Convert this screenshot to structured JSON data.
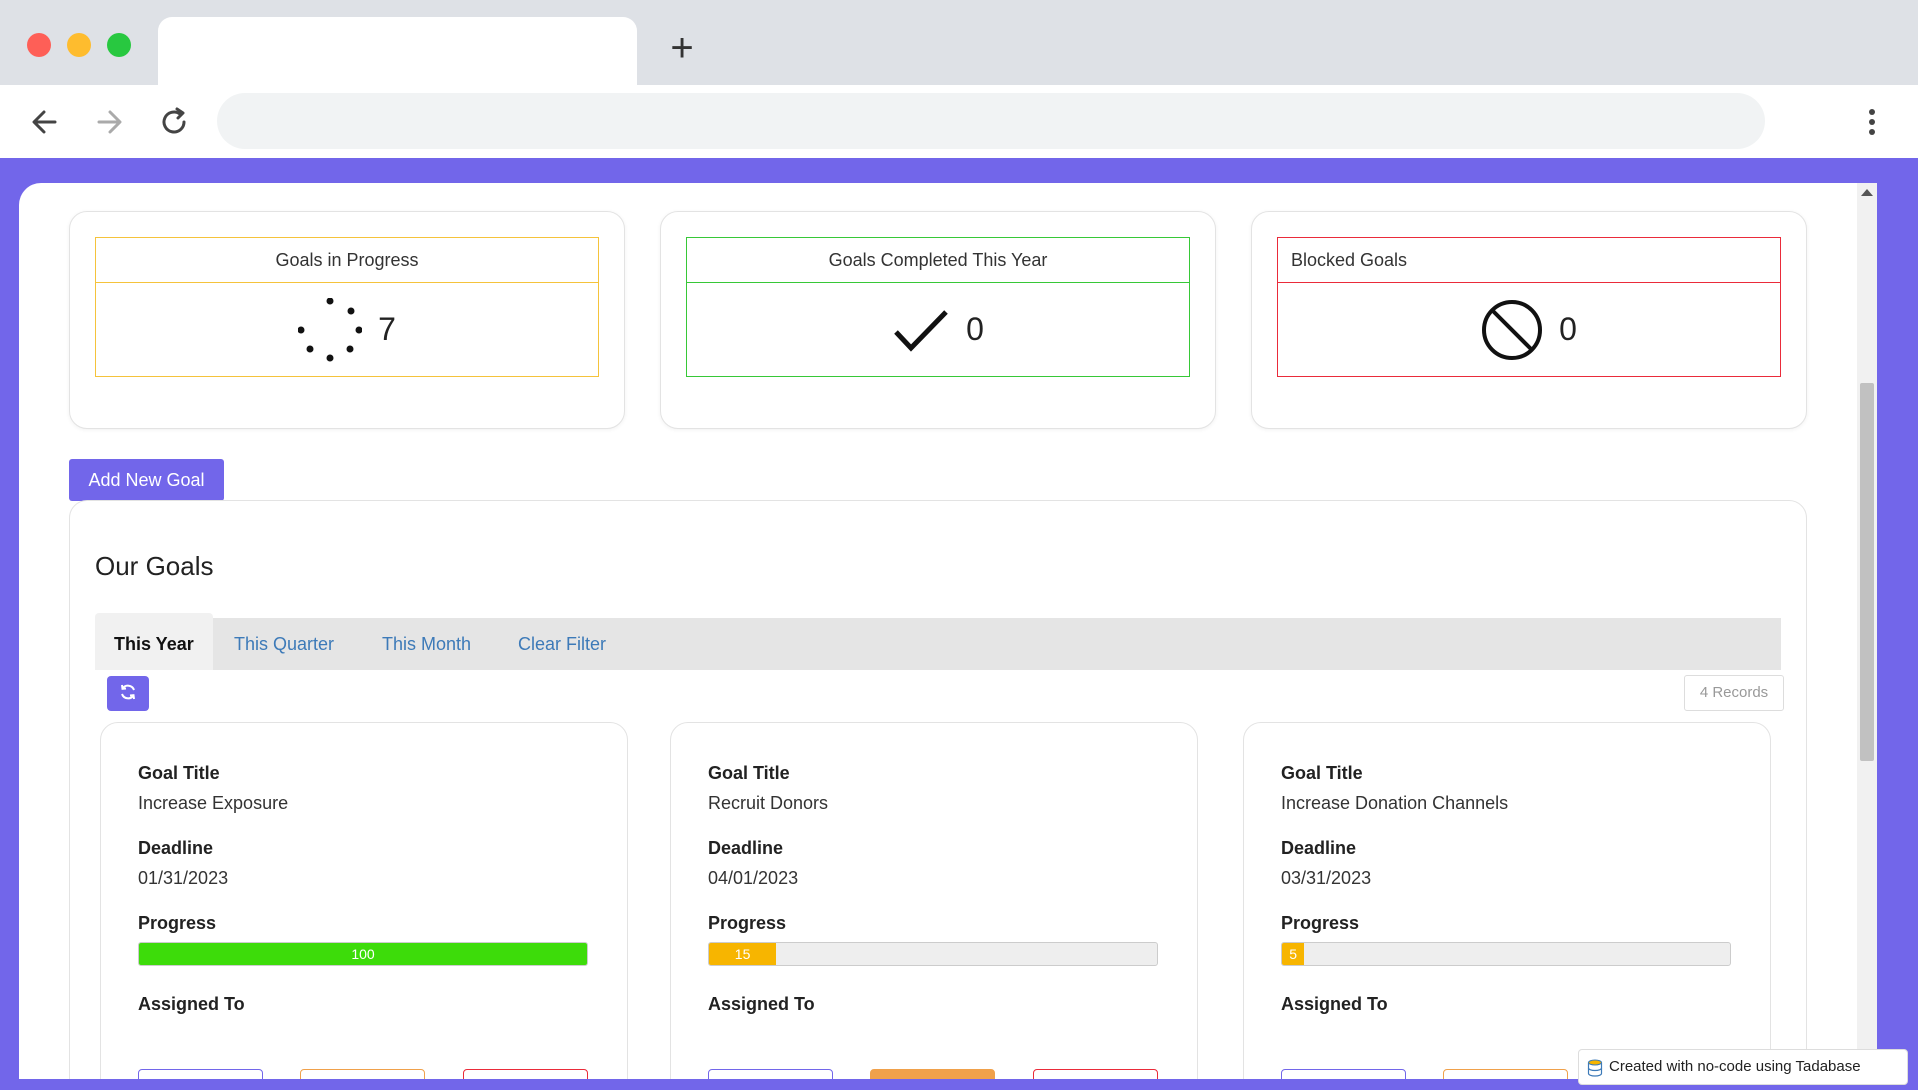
{
  "browser": {
    "tab_title": "",
    "address": "",
    "new_tab_symbol": "+"
  },
  "stats": [
    {
      "title": "Goals in Progress",
      "count": "7",
      "icon": "spinner-icon",
      "accent": "#f5c33b"
    },
    {
      "title": "Goals Completed This Year",
      "count": "0",
      "icon": "checkmark-icon",
      "accent": "#37c837"
    },
    {
      "title": "Blocked Goals",
      "count": "0",
      "icon": "blocked-icon",
      "accent": "#ea2b3a"
    }
  ],
  "add_goal_label": "Add New Goal",
  "goals_section": {
    "title": "Our Goals",
    "filters": [
      "This Year",
      "This Quarter",
      "This Month",
      "Clear Filter"
    ],
    "active_filter": "This Year",
    "records_label": "4 Records"
  },
  "field_labels": {
    "title": "Goal Title",
    "deadline": "Deadline",
    "progress": "Progress",
    "assigned": "Assigned To"
  },
  "goals": [
    {
      "title": "Increase Exposure",
      "deadline": "01/31/2023",
      "progress": 100,
      "progress_label": "100",
      "progress_color": "#3ddc0a"
    },
    {
      "title": "Recruit Donors",
      "deadline": "04/01/2023",
      "progress": 15,
      "progress_label": "15",
      "progress_color": "#f7b500"
    },
    {
      "title": "Increase Donation Channels",
      "deadline": "03/31/2023",
      "progress": 5,
      "progress_label": "5",
      "progress_color": "#f7b500"
    }
  ],
  "colors": {
    "brand": "#7266ea",
    "action_purple": "#7266ea",
    "action_orange": "#f0a14b",
    "action_red": "#ea2b3a"
  },
  "footer_badge": "Created with no-code using Tadabase"
}
